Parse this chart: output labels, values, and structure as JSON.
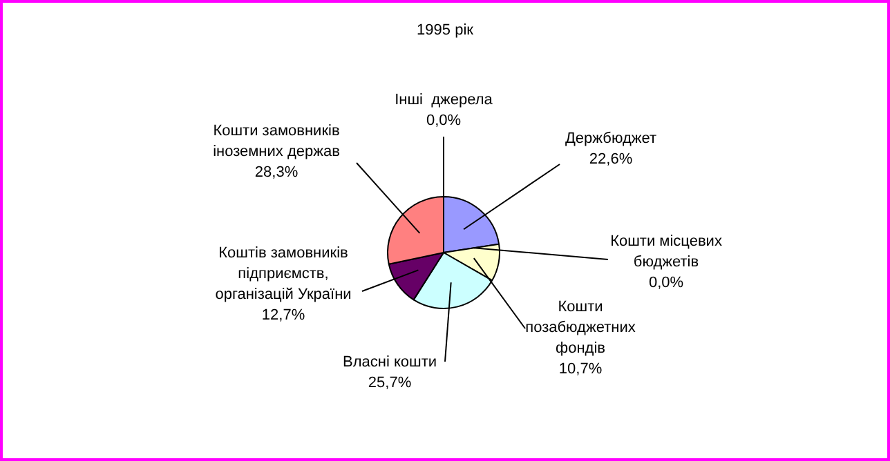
{
  "chart_data": {
    "type": "pie",
    "title": "1995 рік",
    "categories": [
      "Держбюджет",
      "Кошти місцевих\nбюджетів",
      "Кошти\nпозабюджетних\nфондів",
      "Власні кошти",
      "Коштів замовників\nпідприємств,\nорганізацій України",
      "Кошти замовників\nіноземних держав",
      "Інші  джерела"
    ],
    "values": [
      22.6,
      0.0,
      10.7,
      25.7,
      12.7,
      28.3,
      0.0
    ],
    "value_labels": [
      "22,6%",
      "0,0%",
      "10,7%",
      "25,7%",
      "12,7%",
      "28,3%",
      "0,0%"
    ],
    "colors": [
      "#9999ff",
      "#993366",
      "#ffffcc",
      "#ccffff",
      "#660066",
      "#ff8080",
      "#0066cc"
    ],
    "legend": false
  }
}
